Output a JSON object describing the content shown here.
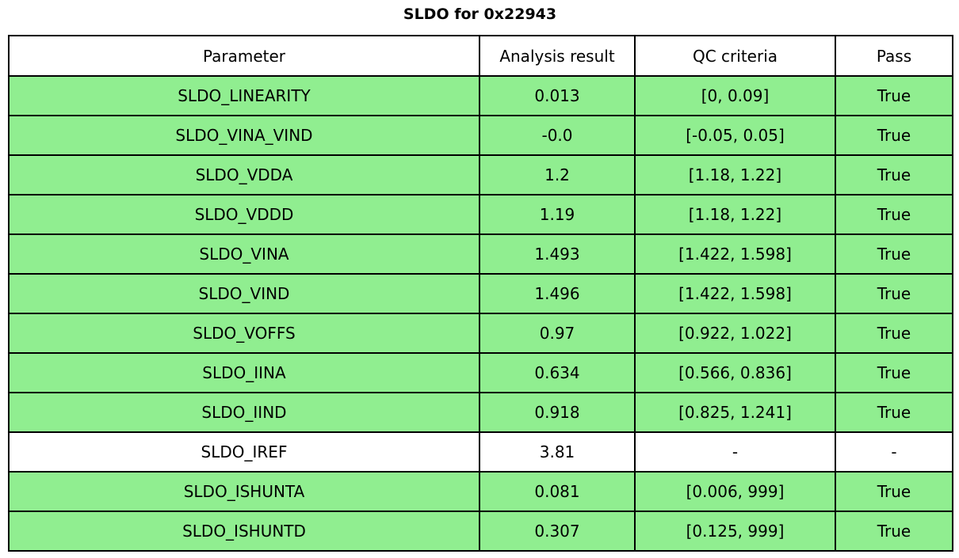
{
  "colors": {
    "row_pass_bg": "#90EE90",
    "row_neutral_bg": "#FFFFFF",
    "border": "#000000",
    "text": "#000000"
  },
  "chart_data": {
    "type": "table",
    "title": "SLDO for 0x22943",
    "columns": [
      "Parameter",
      "Analysis result",
      "QC criteria",
      "Pass"
    ],
    "rows": [
      {
        "parameter": "SLDO_LINEARITY",
        "analysis_result": "0.013",
        "qc_criteria": "[0, 0.09]",
        "pass": "True",
        "highlighted": true
      },
      {
        "parameter": "SLDO_VINA_VIND",
        "analysis_result": "-0.0",
        "qc_criteria": "[-0.05, 0.05]",
        "pass": "True",
        "highlighted": true
      },
      {
        "parameter": "SLDO_VDDA",
        "analysis_result": "1.2",
        "qc_criteria": "[1.18, 1.22]",
        "pass": "True",
        "highlighted": true
      },
      {
        "parameter": "SLDO_VDDD",
        "analysis_result": "1.19",
        "qc_criteria": "[1.18, 1.22]",
        "pass": "True",
        "highlighted": true
      },
      {
        "parameter": "SLDO_VINA",
        "analysis_result": "1.493",
        "qc_criteria": "[1.422, 1.598]",
        "pass": "True",
        "highlighted": true
      },
      {
        "parameter": "SLDO_VIND",
        "analysis_result": "1.496",
        "qc_criteria": "[1.422, 1.598]",
        "pass": "True",
        "highlighted": true
      },
      {
        "parameter": "SLDO_VOFFS",
        "analysis_result": "0.97",
        "qc_criteria": "[0.922, 1.022]",
        "pass": "True",
        "highlighted": true
      },
      {
        "parameter": "SLDO_IINA",
        "analysis_result": "0.634",
        "qc_criteria": "[0.566, 0.836]",
        "pass": "True",
        "highlighted": true
      },
      {
        "parameter": "SLDO_IIND",
        "analysis_result": "0.918",
        "qc_criteria": "[0.825, 1.241]",
        "pass": "True",
        "highlighted": true
      },
      {
        "parameter": "SLDO_IREF",
        "analysis_result": "3.81",
        "qc_criteria": "-",
        "pass": "-",
        "highlighted": false
      },
      {
        "parameter": "SLDO_ISHUNTA",
        "analysis_result": "0.081",
        "qc_criteria": "[0.006, 999]",
        "pass": "True",
        "highlighted": true
      },
      {
        "parameter": "SLDO_ISHUNTD",
        "analysis_result": "0.307",
        "qc_criteria": "[0.125, 999]",
        "pass": "True",
        "highlighted": true
      }
    ]
  }
}
